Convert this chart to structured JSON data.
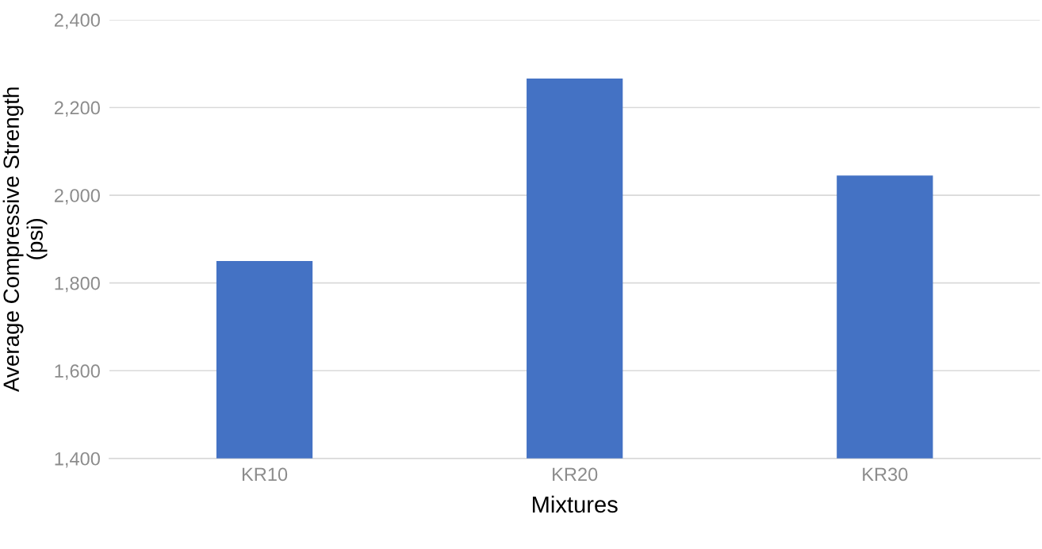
{
  "chart_data": {
    "type": "bar",
    "xlabel": "Mixtures",
    "ylabel": "Average Compressive Strength\n(psi)",
    "categories": [
      "KR10",
      "KR20",
      "KR30"
    ],
    "values": [
      1850,
      2266,
      2045
    ],
    "color": "#4472c4",
    "ylim": [
      1400,
      2400
    ],
    "yticks": [
      {
        "value": 1400,
        "label": "1,400"
      },
      {
        "value": 1600,
        "label": "1,600"
      },
      {
        "value": 1800,
        "label": "1,800"
      },
      {
        "value": 2000,
        "label": "2,000"
      },
      {
        "value": 2200,
        "label": "2,200"
      },
      {
        "value": 2400,
        "label": "2,400"
      }
    ],
    "grid": "y",
    "legend": false
  }
}
